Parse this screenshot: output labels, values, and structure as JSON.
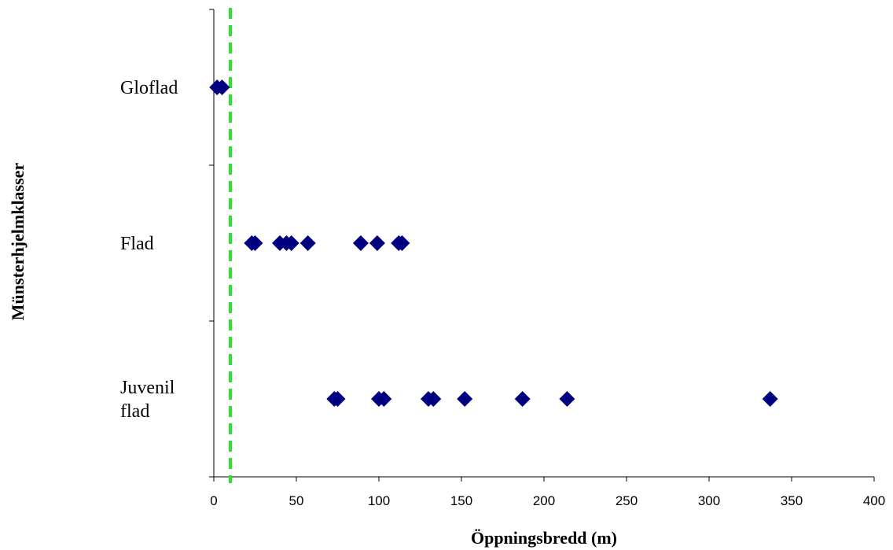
{
  "chart_data": {
    "type": "scatter",
    "title": "",
    "xlabel": "Öppningsbredd (m)",
    "ylabel": "Münsterhjelmklasser",
    "xlim": [
      0,
      400
    ],
    "x_ticks": [
      "0",
      "50",
      "100",
      "150",
      "200",
      "250",
      "300",
      "350",
      "400"
    ],
    "categories": [
      {
        "label_lines": [
          "Gloflad"
        ]
      },
      {
        "label_lines": [
          "Flad"
        ]
      },
      {
        "label_lines": [
          "Juvenil",
          "flad"
        ]
      }
    ],
    "series": [
      {
        "category_index": 0,
        "x": [
          2,
          5
        ]
      },
      {
        "category_index": 1,
        "x": [
          23,
          25,
          40,
          44,
          47,
          57,
          89,
          99,
          112,
          114
        ]
      },
      {
        "category_index": 2,
        "x": [
          73,
          75,
          100,
          103,
          130,
          133,
          152,
          187,
          214,
          337
        ]
      }
    ],
    "reference_line": {
      "x": 10,
      "style": "dashed",
      "color": "#2ee02e"
    },
    "marker_color": "#000080",
    "grid": false,
    "legend": false
  }
}
